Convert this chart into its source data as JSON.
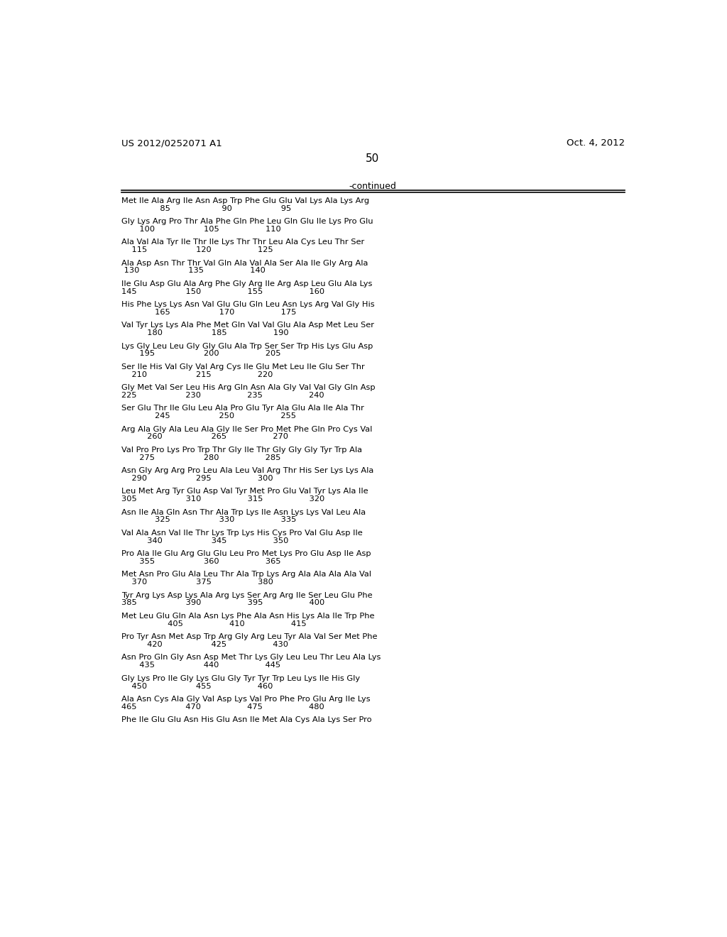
{
  "header_left": "US 2012/0252071 A1",
  "header_right": "Oct. 4, 2012",
  "page_number": "50",
  "continued_label": "-continued",
  "background_color": "#ffffff",
  "text_color": "#000000",
  "lines": [
    {
      "seq": "Met Ile Ala Arg Ile Asn Asp Trp Phe Glu Glu Val Lys Ala Lys Arg",
      "nums": "               85                    90                   95"
    },
    {
      "seq": "Gly Lys Arg Pro Thr Ala Phe Gln Phe Leu Gln Glu Ile Lys Pro Glu",
      "nums": "       100                   105                  110"
    },
    {
      "seq": "Ala Val Ala Tyr Ile Thr Ile Lys Thr Thr Leu Ala Cys Leu Thr Ser",
      "nums": "    115                   120                  125"
    },
    {
      "seq": "Ala Asp Asn Thr Thr Val Gln Ala Val Ala Ser Ala Ile Gly Arg Ala",
      "nums": " 130                   135                  140"
    },
    {
      "seq": "Ile Glu Asp Glu Ala Arg Phe Gly Arg Ile Arg Asp Leu Glu Ala Lys",
      "nums": "145                   150                  155                  160"
    },
    {
      "seq": "His Phe Lys Lys Asn Val Glu Glu Gln Leu Asn Lys Arg Val Gly His",
      "nums": "             165                   170                  175"
    },
    {
      "seq": "Val Tyr Lys Lys Ala Phe Met Gln Val Val Glu Ala Asp Met Leu Ser",
      "nums": "          180                   185                  190"
    },
    {
      "seq": "Lys Gly Leu Leu Gly Gly Glu Ala Trp Ser Ser Trp His Lys Glu Asp",
      "nums": "       195                   200                  205"
    },
    {
      "seq": "Ser Ile His Val Gly Val Arg Cys Ile Glu Met Leu Ile Glu Ser Thr",
      "nums": "    210                   215                  220"
    },
    {
      "seq": "Gly Met Val Ser Leu His Arg Gln Asn Ala Gly Val Val Gly Gln Asp",
      "nums": "225                   230                  235                  240"
    },
    {
      "seq": "Ser Glu Thr Ile Glu Leu Ala Pro Glu Tyr Ala Glu Ala Ile Ala Thr",
      "nums": "             245                   250                  255"
    },
    {
      "seq": "Arg Ala Gly Ala Leu Ala Gly Ile Ser Pro Met Phe Gln Pro Cys Val",
      "nums": "          260                   265                  270"
    },
    {
      "seq": "Val Pro Pro Lys Pro Trp Thr Gly Ile Thr Gly Gly Gly Tyr Trp Ala",
      "nums": "       275                   280                  285"
    },
    {
      "seq": "Asn Gly Arg Arg Pro Leu Ala Leu Val Arg Thr His Ser Lys Lys Ala",
      "nums": "    290                   295                  300"
    },
    {
      "seq": "Leu Met Arg Tyr Glu Asp Val Tyr Met Pro Glu Val Tyr Lys Ala Ile",
      "nums": "305                   310                  315                  320"
    },
    {
      "seq": "Asn Ile Ala Gln Asn Thr Ala Trp Lys Ile Asn Lys Lys Val Leu Ala",
      "nums": "             325                   330                  335"
    },
    {
      "seq": "Val Ala Asn Val Ile Thr Lys Trp Lys His Cys Pro Val Glu Asp Ile",
      "nums": "          340                   345                  350"
    },
    {
      "seq": "Pro Ala Ile Glu Arg Glu Glu Leu Pro Met Lys Pro Glu Asp Ile Asp",
      "nums": "       355                   360                  365"
    },
    {
      "seq": "Met Asn Pro Glu Ala Leu Thr Ala Trp Lys Arg Ala Ala Ala Ala Val",
      "nums": "    370                   375                  380"
    },
    {
      "seq": "Tyr Arg Lys Asp Lys Ala Arg Lys Ser Arg Arg Ile Ser Leu Glu Phe",
      "nums": "385                   390                  395                  400"
    },
    {
      "seq": "Met Leu Glu Gln Ala Asn Lys Phe Ala Asn His Lys Ala Ile Trp Phe",
      "nums": "                  405                  410                  415"
    },
    {
      "seq": "Pro Tyr Asn Met Asp Trp Arg Gly Arg Leu Tyr Ala Val Ser Met Phe",
      "nums": "          420                   425                  430"
    },
    {
      "seq": "Asn Pro Gln Gly Asn Asp Met Thr Lys Gly Leu Leu Thr Leu Ala Lys",
      "nums": "       435                   440                  445"
    },
    {
      "seq": "Gly Lys Pro Ile Gly Lys Glu Gly Tyr Tyr Trp Leu Lys Ile His Gly",
      "nums": "    450                   455                  460"
    },
    {
      "seq": "Ala Asn Cys Ala Gly Val Asp Lys Val Pro Phe Pro Glu Arg Ile Lys",
      "nums": "465                   470                  475                  480"
    },
    {
      "seq": "Phe Ile Glu Glu Asn His Glu Asn Ile Met Ala Cys Ala Lys Ser Pro",
      "nums": ""
    }
  ]
}
